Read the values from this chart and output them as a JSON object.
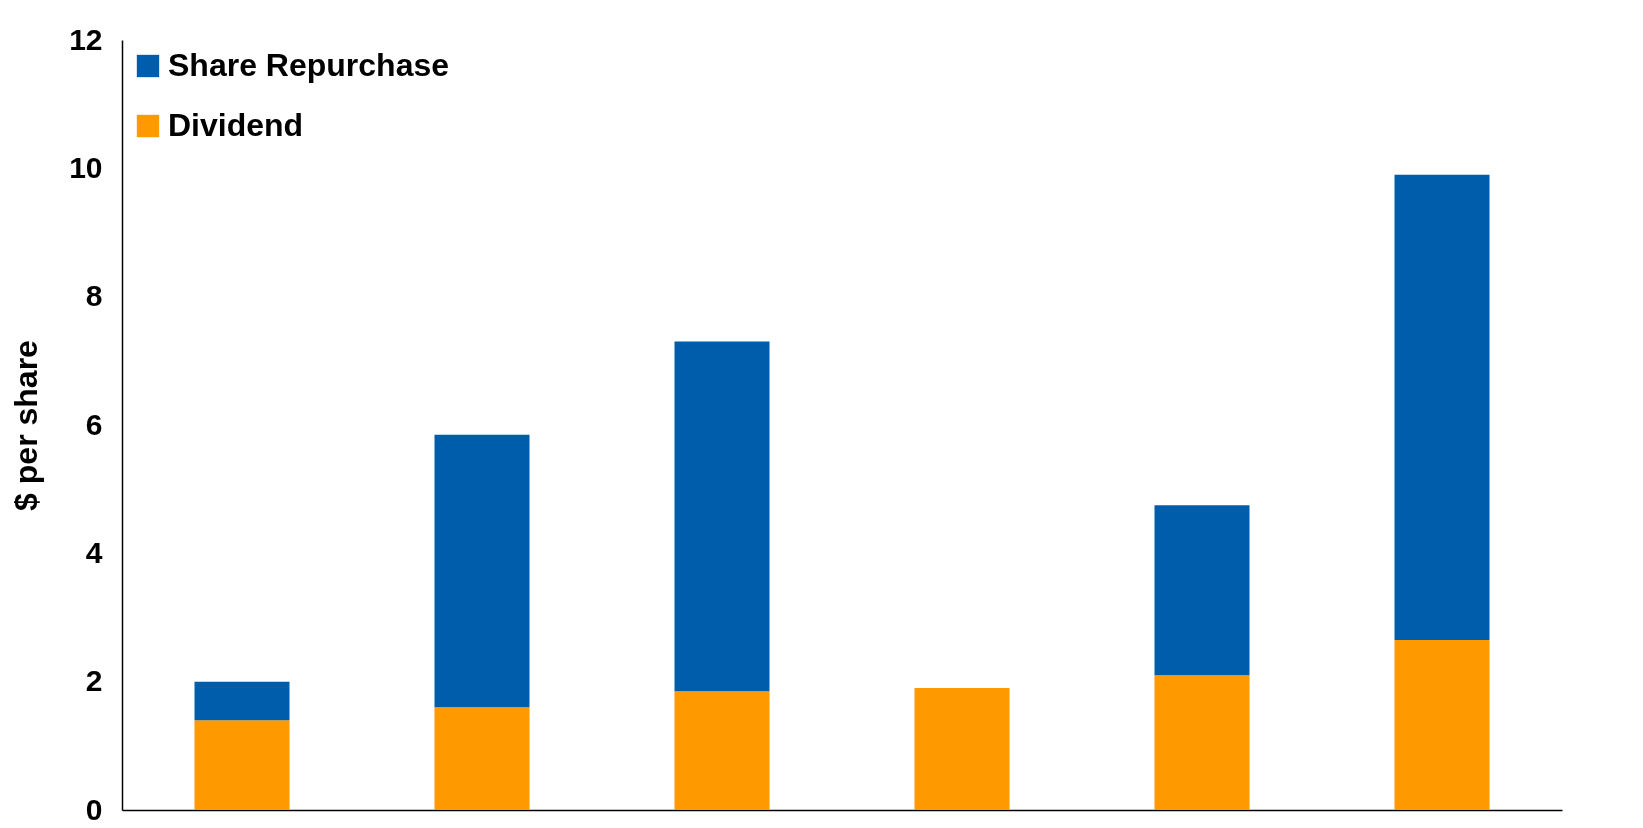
{
  "chart_data": {
    "type": "bar",
    "stacked": true,
    "ylabel": "$ per share",
    "categories": [
      null,
      null,
      null,
      null,
      null,
      null
    ],
    "series": [
      {
        "name": "Dividend",
        "color": "#ff9900",
        "values": [
          1.4,
          1.6,
          1.85,
          1.9,
          2.1,
          2.65
        ]
      },
      {
        "name": "Share Repurchase",
        "color": "#005dac",
        "values": [
          0.6,
          4.25,
          5.45,
          null,
          2.65,
          7.25
        ]
      }
    ],
    "ylim": [
      0,
      12
    ],
    "yticks": [
      0,
      2,
      4,
      6,
      8,
      10,
      12
    ],
    "grid": false,
    "legend": "top left"
  }
}
